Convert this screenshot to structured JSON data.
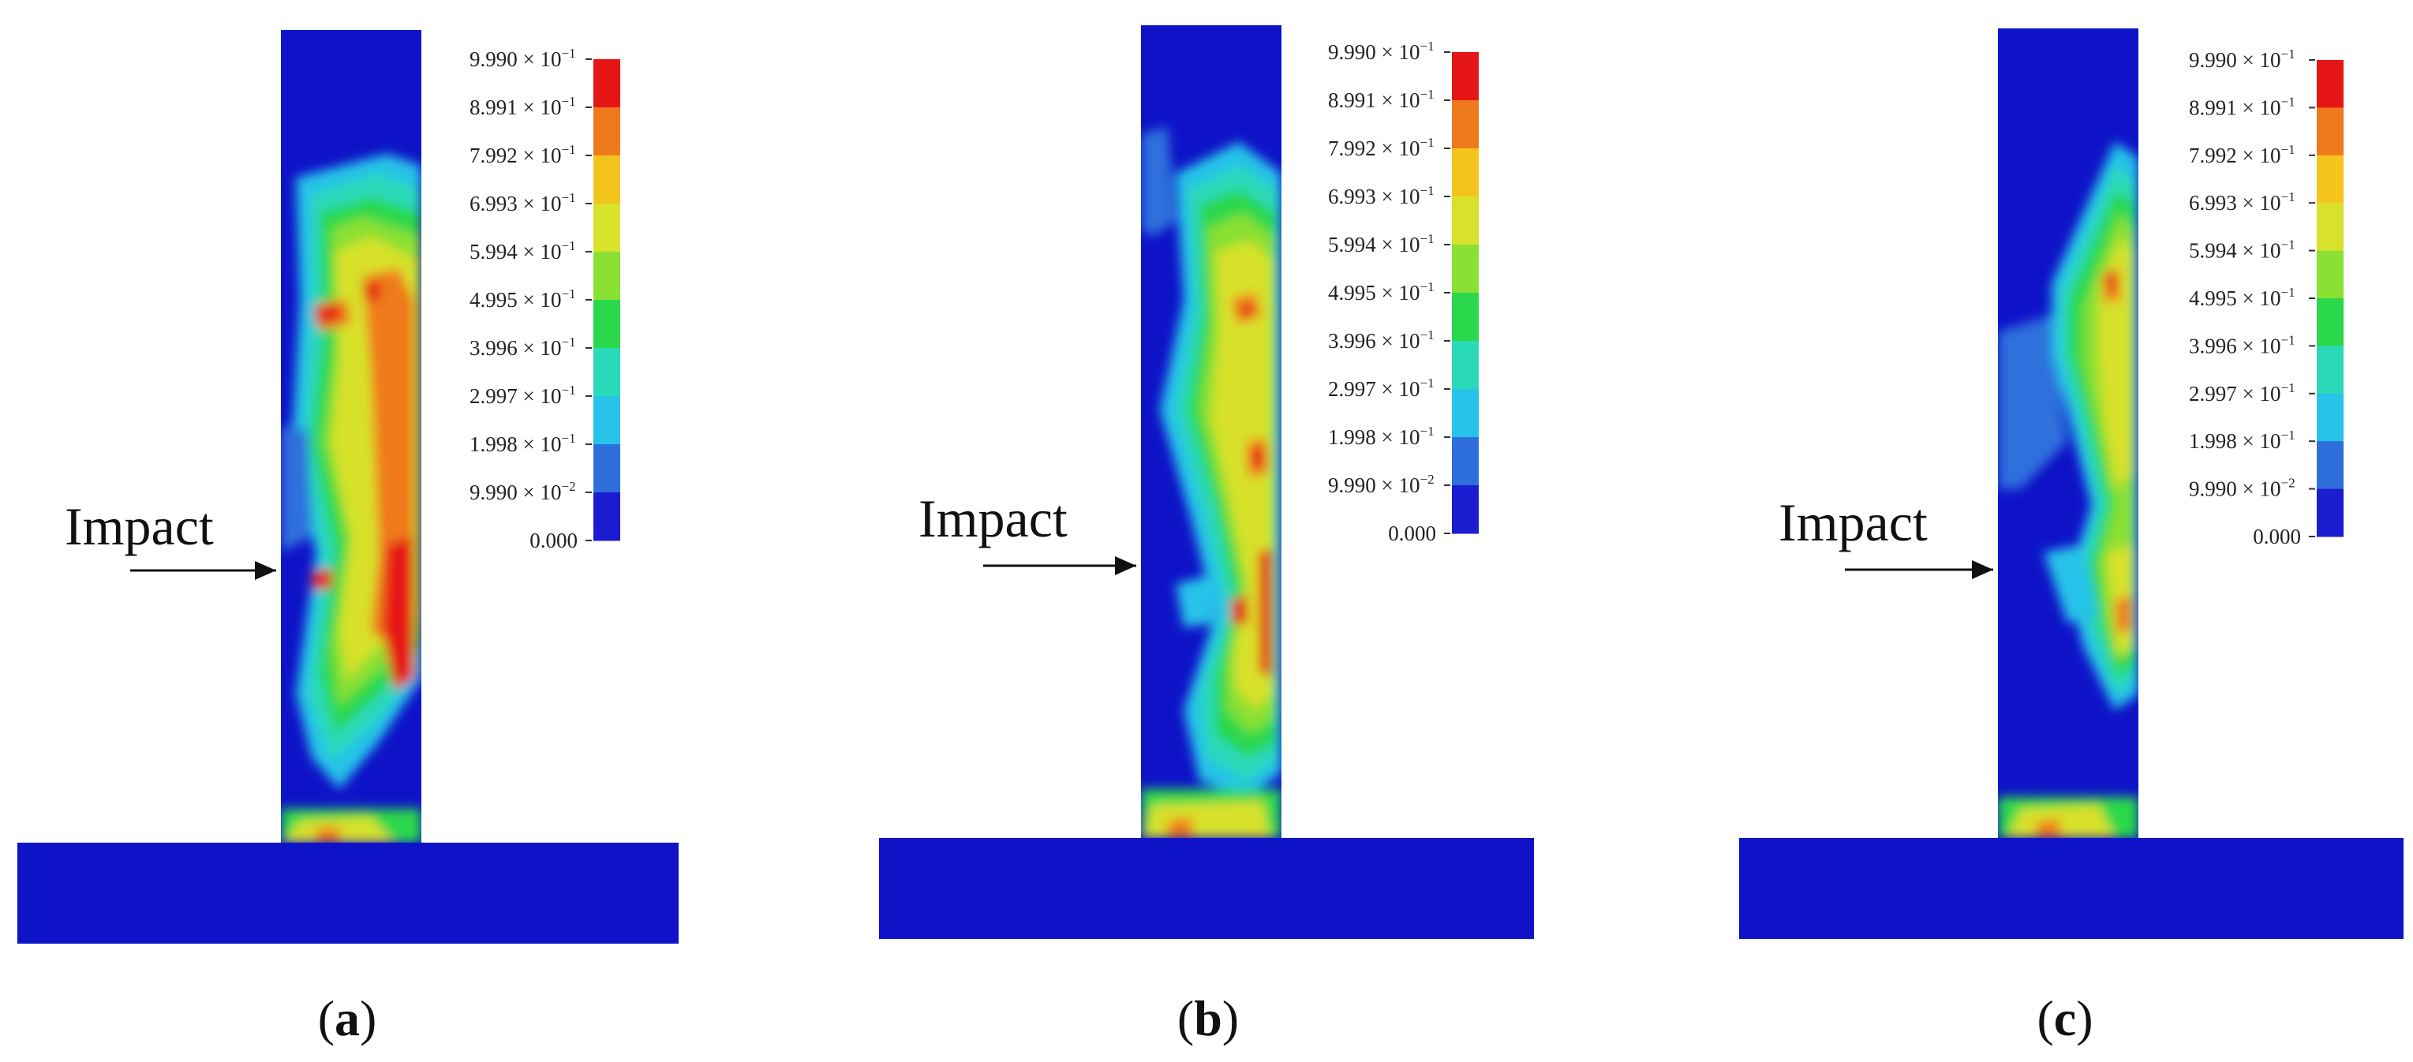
{
  "colors": {
    "background": "#ffffff",
    "structure": "#0f13c8",
    "scale": [
      "#1c1cd0",
      "#2f6fdc",
      "#27c3e8",
      "#2ad9b8",
      "#2bd84b",
      "#8ae033",
      "#d8e12b",
      "#f3c51c",
      "#ef7a1d",
      "#e61616"
    ]
  },
  "legend": {
    "labels": [
      {
        "mantissa": "9.990",
        "base": " × 10",
        "exp": "−1"
      },
      {
        "mantissa": "8.991",
        "base": " × 10",
        "exp": "−1"
      },
      {
        "mantissa": "7.992",
        "base": " × 10",
        "exp": "−1"
      },
      {
        "mantissa": "6.993",
        "base": " × 10",
        "exp": "−1"
      },
      {
        "mantissa": "5.994",
        "base": " × 10",
        "exp": "−1"
      },
      {
        "mantissa": "4.995",
        "base": " × 10",
        "exp": "−1"
      },
      {
        "mantissa": "3.996",
        "base": " × 10",
        "exp": "−1"
      },
      {
        "mantissa": "2.997",
        "base": " × 10",
        "exp": "−1"
      },
      {
        "mantissa": "1.998",
        "base": " × 10",
        "exp": "−1"
      },
      {
        "mantissa": "9.990",
        "base": " × 10",
        "exp": "−2"
      },
      {
        "mantissa": "0.000",
        "base": "",
        "exp": ""
      }
    ]
  },
  "panels": [
    {
      "id": "a",
      "impact_label": "Impact",
      "caption_open": "(",
      "caption_letter": "a",
      "caption_close": ")"
    },
    {
      "id": "b",
      "impact_label": "Impact",
      "caption_open": "(",
      "caption_letter": "b",
      "caption_close": ")"
    },
    {
      "id": "c",
      "impact_label": "Impact",
      "caption_open": "(",
      "caption_letter": "c",
      "caption_close": ")"
    }
  ]
}
